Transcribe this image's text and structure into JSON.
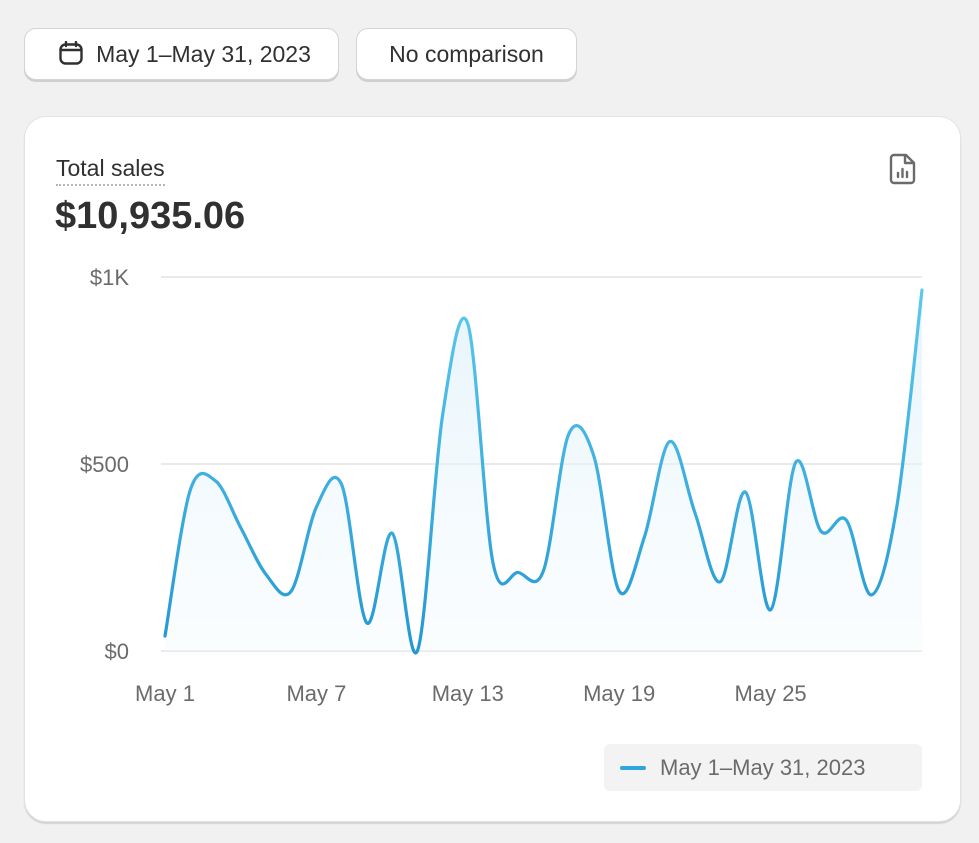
{
  "toolbar": {
    "date_range_label": "May 1–May 31, 2023",
    "comparison_label": "No comparison",
    "date_icon": "calendar-icon"
  },
  "card": {
    "metric_label": "Total sales",
    "metric_value": "$10,935.06",
    "report_icon": "report-file-icon"
  },
  "chart_data": {
    "type": "line",
    "x_tick_labels": [
      "May 1",
      "May 7",
      "May 13",
      "May 19",
      "May 25"
    ],
    "y_tick_labels": [
      "$0",
      "$500",
      "$1K"
    ],
    "ylim": [
      0,
      1000
    ],
    "grid": true,
    "legend_placement": "bottom-right",
    "line_color": "#2ea6dd",
    "x": [
      "May 1",
      "May 2",
      "May 3",
      "May 4",
      "May 5",
      "May 6",
      "May 7",
      "May 8",
      "May 9",
      "May 10",
      "May 11",
      "May 12",
      "May 13",
      "May 14",
      "May 15",
      "May 16",
      "May 17",
      "May 18",
      "May 19",
      "May 20",
      "May 21",
      "May 22",
      "May 23",
      "May 24",
      "May 25",
      "May 26",
      "May 27",
      "May 28",
      "May 29",
      "May 30",
      "May 31"
    ],
    "series": [
      {
        "name": "May 1–May 31, 2023",
        "values": [
          40,
          430,
          455,
          330,
          205,
          160,
          385,
          445,
          75,
          315,
          0,
          630,
          875,
          235,
          210,
          215,
          580,
          520,
          160,
          305,
          560,
          370,
          185,
          425,
          110,
          505,
          320,
          350,
          150,
          385,
          965
        ]
      }
    ]
  }
}
